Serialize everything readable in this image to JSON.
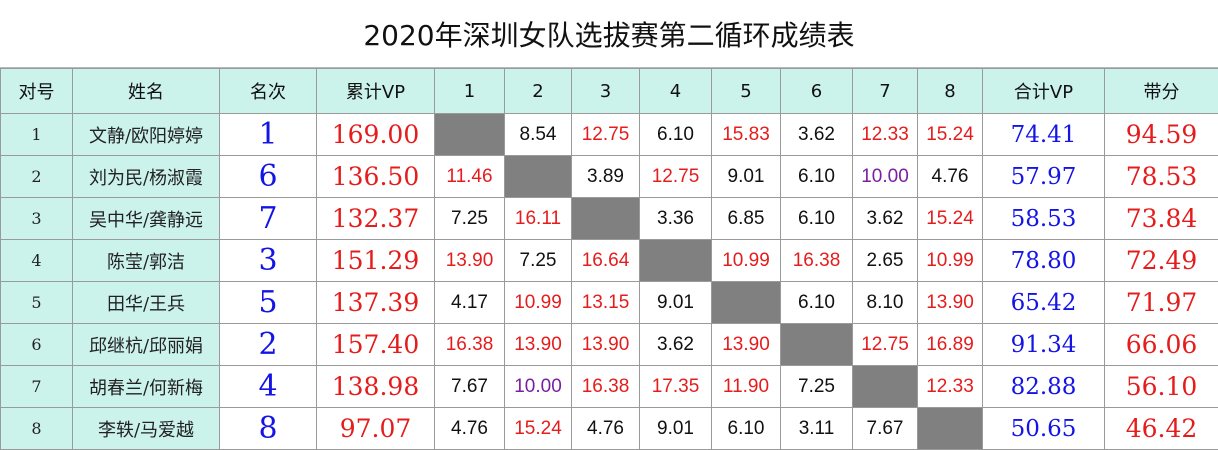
{
  "title": "2020年深圳女队选拔赛第二循环成绩表",
  "colors": {
    "header_bg": "#ccf2ec",
    "self_cell": "#808080",
    "red": "#e51c1c",
    "blue": "#1414e6",
    "purple": "#7a1fa3",
    "black": "#111111"
  },
  "headers": [
    "对号",
    "姓名",
    "名次",
    "累计VP",
    "1",
    "2",
    "3",
    "4",
    "5",
    "6",
    "7",
    "8",
    "合计VP",
    "带分"
  ],
  "rows": [
    {
      "no": "1",
      "name": "文静/欧阳婷婷",
      "rank": "1",
      "total": "169.00",
      "scores": [
        {
          "v": "",
          "c": "self"
        },
        {
          "v": "8.54",
          "c": "black"
        },
        {
          "v": "12.75",
          "c": "red"
        },
        {
          "v": "6.10",
          "c": "black"
        },
        {
          "v": "15.83",
          "c": "red"
        },
        {
          "v": "3.62",
          "c": "black"
        },
        {
          "v": "12.33",
          "c": "red"
        },
        {
          "v": "15.24",
          "c": "red"
        }
      ],
      "sum": "74.41",
      "carry": "94.59"
    },
    {
      "no": "2",
      "name": "刘为民/杨淑霞",
      "rank": "6",
      "total": "136.50",
      "scores": [
        {
          "v": "11.46",
          "c": "red"
        },
        {
          "v": "",
          "c": "self"
        },
        {
          "v": "3.89",
          "c": "black"
        },
        {
          "v": "12.75",
          "c": "red"
        },
        {
          "v": "9.01",
          "c": "black"
        },
        {
          "v": "6.10",
          "c": "black"
        },
        {
          "v": "10.00",
          "c": "purple"
        },
        {
          "v": "4.76",
          "c": "black"
        }
      ],
      "sum": "57.97",
      "carry": "78.53"
    },
    {
      "no": "3",
      "name": "吴中华/龚静远",
      "rank": "7",
      "total": "132.37",
      "scores": [
        {
          "v": "7.25",
          "c": "black"
        },
        {
          "v": "16.11",
          "c": "red"
        },
        {
          "v": "",
          "c": "self"
        },
        {
          "v": "3.36",
          "c": "black"
        },
        {
          "v": "6.85",
          "c": "black"
        },
        {
          "v": "6.10",
          "c": "black"
        },
        {
          "v": "3.62",
          "c": "black"
        },
        {
          "v": "15.24",
          "c": "red"
        }
      ],
      "sum": "58.53",
      "carry": "73.84"
    },
    {
      "no": "4",
      "name": "陈莹/郭洁",
      "rank": "3",
      "total": "151.29",
      "scores": [
        {
          "v": "13.90",
          "c": "red"
        },
        {
          "v": "7.25",
          "c": "black"
        },
        {
          "v": "16.64",
          "c": "red"
        },
        {
          "v": "",
          "c": "self"
        },
        {
          "v": "10.99",
          "c": "red"
        },
        {
          "v": "16.38",
          "c": "red"
        },
        {
          "v": "2.65",
          "c": "black"
        },
        {
          "v": "10.99",
          "c": "red"
        }
      ],
      "sum": "78.80",
      "carry": "72.49"
    },
    {
      "no": "5",
      "name": "田华/王兵",
      "rank": "5",
      "total": "137.39",
      "scores": [
        {
          "v": "4.17",
          "c": "black"
        },
        {
          "v": "10.99",
          "c": "red"
        },
        {
          "v": "13.15",
          "c": "red"
        },
        {
          "v": "9.01",
          "c": "black"
        },
        {
          "v": "",
          "c": "self"
        },
        {
          "v": "6.10",
          "c": "black"
        },
        {
          "v": "8.10",
          "c": "black"
        },
        {
          "v": "13.90",
          "c": "red"
        }
      ],
      "sum": "65.42",
      "carry": "71.97"
    },
    {
      "no": "6",
      "name": "邱继杭/邱丽娟",
      "rank": "2",
      "total": "157.40",
      "scores": [
        {
          "v": "16.38",
          "c": "red"
        },
        {
          "v": "13.90",
          "c": "red"
        },
        {
          "v": "13.90",
          "c": "red"
        },
        {
          "v": "3.62",
          "c": "black"
        },
        {
          "v": "13.90",
          "c": "red"
        },
        {
          "v": "",
          "c": "self"
        },
        {
          "v": "12.75",
          "c": "red"
        },
        {
          "v": "16.89",
          "c": "red"
        }
      ],
      "sum": "91.34",
      "carry": "66.06"
    },
    {
      "no": "7",
      "name": "胡春兰/何新梅",
      "rank": "4",
      "total": "138.98",
      "scores": [
        {
          "v": "7.67",
          "c": "black"
        },
        {
          "v": "10.00",
          "c": "purple"
        },
        {
          "v": "16.38",
          "c": "red"
        },
        {
          "v": "17.35",
          "c": "red"
        },
        {
          "v": "11.90",
          "c": "red"
        },
        {
          "v": "7.25",
          "c": "black"
        },
        {
          "v": "",
          "c": "self"
        },
        {
          "v": "12.33",
          "c": "red"
        }
      ],
      "sum": "82.88",
      "carry": "56.10"
    },
    {
      "no": "8",
      "name": "李轶/马爱越",
      "rank": "8",
      "total": "97.07",
      "scores": [
        {
          "v": "4.76",
          "c": "black"
        },
        {
          "v": "15.24",
          "c": "red"
        },
        {
          "v": "4.76",
          "c": "black"
        },
        {
          "v": "9.01",
          "c": "black"
        },
        {
          "v": "6.10",
          "c": "black"
        },
        {
          "v": "3.11",
          "c": "black"
        },
        {
          "v": "7.67",
          "c": "black"
        },
        {
          "v": "",
          "c": "self"
        }
      ],
      "sum": "50.65",
      "carry": "46.42"
    }
  ]
}
